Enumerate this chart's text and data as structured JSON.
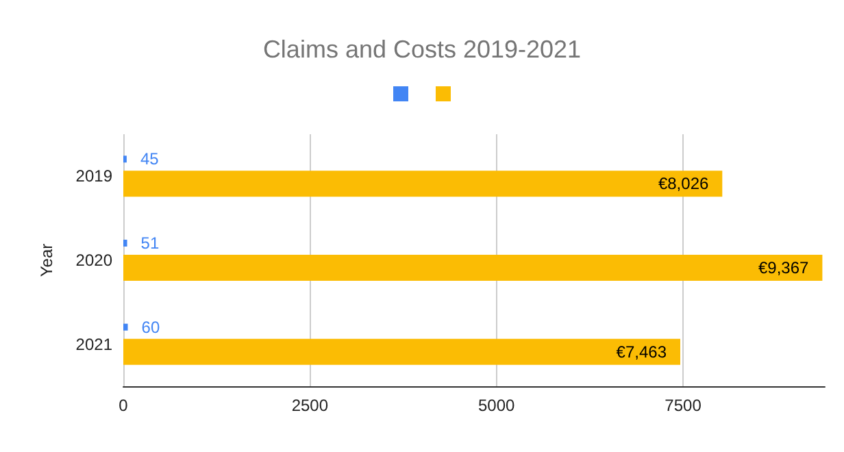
{
  "chart_data": {
    "type": "bar",
    "orientation": "horizontal",
    "title": "Claims and Costs 2019-2021",
    "ylabel": "Year",
    "categories": [
      "2019",
      "2020",
      "2021"
    ],
    "series": [
      {
        "color": "#4285f4",
        "values": [
          45,
          51,
          60
        ],
        "value_labels": [
          "45",
          "51",
          "60"
        ]
      },
      {
        "color": "#fbbc04",
        "values": [
          8026,
          9367,
          7463
        ],
        "value_labels": [
          "€8,026",
          "€9,367",
          "€7,463"
        ]
      }
    ],
    "xlim": [
      0,
      9400
    ],
    "xticks": [
      0,
      2500,
      5000,
      7500
    ],
    "grid": "x"
  }
}
